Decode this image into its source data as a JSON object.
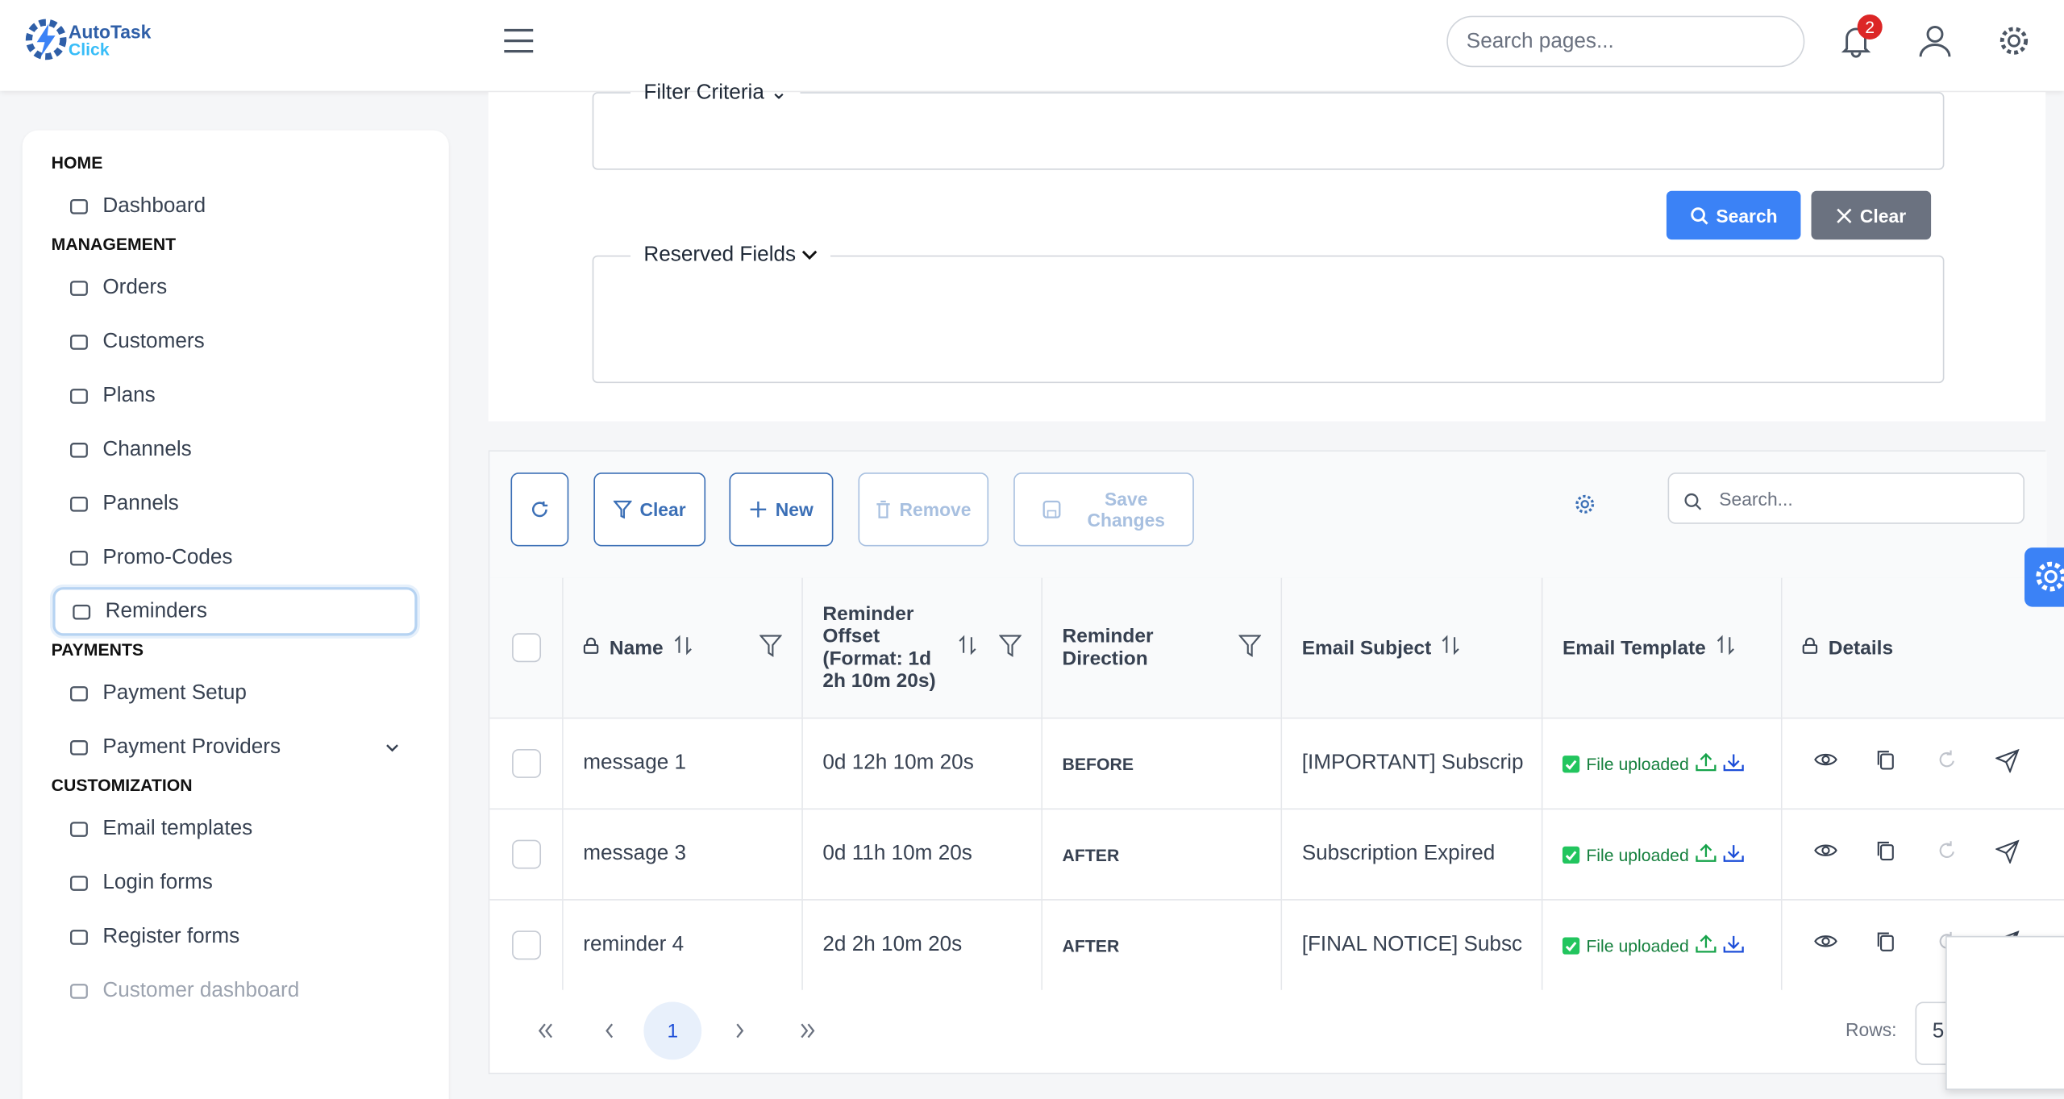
{
  "header": {
    "logo_title": "AutoTask",
    "logo_subtitle": "Click",
    "search_placeholder": "Search pages...",
    "notification_count": 2
  },
  "sidebar": {
    "sections": [
      {
        "title": "HOME",
        "items": [
          "Dashboard"
        ]
      },
      {
        "title": "MANAGEMENT",
        "items": [
          "Orders",
          "Customers",
          "Plans",
          "Channels",
          "Pannels",
          "Promo-Codes",
          "Reminders"
        ]
      },
      {
        "title": "PAYMENTS",
        "items": [
          "Payment Setup",
          "Payment Providers"
        ]
      },
      {
        "title": "CUSTOMIZATION",
        "items": [
          "Email templates",
          "Login forms",
          "Register forms",
          "Customer dashboard"
        ]
      }
    ]
  },
  "filters": {
    "filter_criteria": "Filter Criteria",
    "search_button": "Search",
    "clear_button": "Clear",
    "reserved_fields": "Reserved Fields"
  },
  "table": {
    "toolbar": {
      "clear": "Clear",
      "new": "New",
      "remove": "Remove",
      "save": "Save Changes",
      "search_placeholder": "Search..."
    },
    "columns": [
      "Name",
      "Reminder Offset (Format: 1d 2h 10m 20s)",
      "Reminder Direction",
      "Email Subject",
      "Email Template",
      "Details"
    ],
    "rows": [
      [
        "message 1",
        "0d 12h 10m 20s",
        "BEFORE",
        "[IMPORTANT] Subscrip",
        "File uploaded"
      ],
      [
        "message 3",
        "0d 11h 10m 20s",
        "AFTER",
        "Subscription Expired",
        "File uploaded"
      ],
      [
        "reminder 4",
        "2d 2h 10m 20s",
        "AFTER",
        "[FINAL NOTICE] Subsc",
        "File uploaded"
      ]
    ],
    "pagination": {
      "current_page": 1,
      "rows_label": "Rows:",
      "rows_per_page": 5
    }
  }
}
